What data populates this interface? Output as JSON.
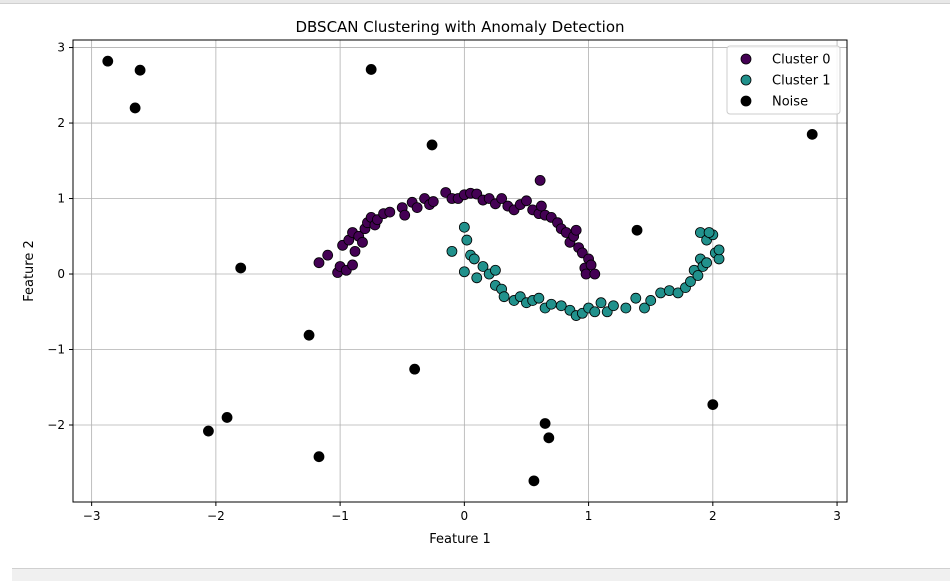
{
  "chart_data": {
    "type": "scatter",
    "title": "DBSCAN Clustering with Anomaly Detection",
    "xlabel": "Feature 1",
    "ylabel": "Feature 2",
    "xlim": [
      -3.15,
      3.08
    ],
    "ylim": [
      -3.02,
      3.1
    ],
    "xticks": [
      -3,
      -2,
      -1,
      0,
      1,
      2,
      3
    ],
    "yticks": [
      -2,
      -1,
      0,
      1,
      2,
      3
    ],
    "grid": true,
    "legend_placement": "top-right",
    "series": [
      {
        "name": "Cluster 0",
        "color": "#440154",
        "points": [
          [
            -1.17,
            0.15
          ],
          [
            -1.1,
            0.25
          ],
          [
            -1.02,
            0.02
          ],
          [
            -1.0,
            0.1
          ],
          [
            -0.98,
            0.38
          ],
          [
            -0.95,
            0.05
          ],
          [
            -0.93,
            0.45
          ],
          [
            -0.9,
            0.12
          ],
          [
            -0.9,
            0.55
          ],
          [
            -0.88,
            0.3
          ],
          [
            -0.85,
            0.5
          ],
          [
            -0.82,
            0.42
          ],
          [
            -0.8,
            0.6
          ],
          [
            -0.78,
            0.68
          ],
          [
            -0.75,
            0.75
          ],
          [
            -0.72,
            0.65
          ],
          [
            -0.7,
            0.72
          ],
          [
            -0.65,
            0.8
          ],
          [
            -0.6,
            0.82
          ],
          [
            -0.5,
            0.88
          ],
          [
            -0.48,
            0.78
          ],
          [
            -0.42,
            0.95
          ],
          [
            -0.38,
            0.88
          ],
          [
            -0.32,
            1.0
          ],
          [
            -0.28,
            0.92
          ],
          [
            -0.25,
            0.96
          ],
          [
            -0.15,
            1.08
          ],
          [
            -0.1,
            1.0
          ],
          [
            -0.05,
            1.0
          ],
          [
            0.0,
            1.05
          ],
          [
            0.05,
            1.07
          ],
          [
            0.1,
            1.06
          ],
          [
            0.15,
            0.98
          ],
          [
            0.2,
            1.0
          ],
          [
            0.25,
            0.93
          ],
          [
            0.3,
            1.0
          ],
          [
            0.35,
            0.9
          ],
          [
            0.4,
            0.85
          ],
          [
            0.45,
            0.92
          ],
          [
            0.5,
            0.97
          ],
          [
            0.55,
            0.85
          ],
          [
            0.6,
            0.8
          ],
          [
            0.62,
            0.9
          ],
          [
            0.61,
            1.24
          ],
          [
            0.65,
            0.78
          ],
          [
            0.7,
            0.75
          ],
          [
            0.75,
            0.68
          ],
          [
            0.78,
            0.6
          ],
          [
            0.82,
            0.55
          ],
          [
            0.85,
            0.42
          ],
          [
            0.88,
            0.5
          ],
          [
            0.9,
            0.58
          ],
          [
            0.92,
            0.35
          ],
          [
            0.95,
            0.28
          ],
          [
            0.97,
            0.08
          ],
          [
            0.98,
            0.0
          ],
          [
            1.0,
            0.2
          ],
          [
            1.02,
            0.12
          ],
          [
            1.05,
            0.0
          ]
        ]
      },
      {
        "name": "Cluster 1",
        "color": "#21918c",
        "points": [
          [
            0.0,
            0.62
          ],
          [
            0.02,
            0.45
          ],
          [
            0.05,
            0.25
          ],
          [
            -0.1,
            0.3
          ],
          [
            0.0,
            0.03
          ],
          [
            0.08,
            0.2
          ],
          [
            0.1,
            -0.05
          ],
          [
            0.15,
            0.1
          ],
          [
            0.2,
            0.0
          ],
          [
            0.25,
            0.05
          ],
          [
            0.25,
            -0.15
          ],
          [
            0.3,
            -0.2
          ],
          [
            0.32,
            -0.3
          ],
          [
            0.4,
            -0.35
          ],
          [
            0.45,
            -0.3
          ],
          [
            0.5,
            -0.38
          ],
          [
            0.55,
            -0.35
          ],
          [
            0.6,
            -0.32
          ],
          [
            0.65,
            -0.45
          ],
          [
            0.7,
            -0.4
          ],
          [
            0.78,
            -0.42
          ],
          [
            0.85,
            -0.48
          ],
          [
            0.9,
            -0.55
          ],
          [
            0.95,
            -0.52
          ],
          [
            1.0,
            -0.45
          ],
          [
            1.05,
            -0.5
          ],
          [
            1.1,
            -0.38
          ],
          [
            1.15,
            -0.5
          ],
          [
            1.2,
            -0.42
          ],
          [
            1.3,
            -0.45
          ],
          [
            1.38,
            -0.32
          ],
          [
            1.45,
            -0.45
          ],
          [
            1.5,
            -0.35
          ],
          [
            1.58,
            -0.25
          ],
          [
            1.65,
            -0.22
          ],
          [
            1.72,
            -0.25
          ],
          [
            1.78,
            -0.18
          ],
          [
            1.82,
            -0.1
          ],
          [
            1.85,
            0.05
          ],
          [
            1.88,
            -0.02
          ],
          [
            1.9,
            0.2
          ],
          [
            1.92,
            0.1
          ],
          [
            1.95,
            0.15
          ],
          [
            1.9,
            0.55
          ],
          [
            1.95,
            0.45
          ],
          [
            2.0,
            0.52
          ],
          [
            2.02,
            0.28
          ],
          [
            2.05,
            0.2
          ],
          [
            2.05,
            0.32
          ],
          [
            1.97,
            0.55
          ]
        ]
      },
      {
        "name": "Noise",
        "color": "#000000",
        "points": [
          [
            -2.87,
            2.82
          ],
          [
            -2.61,
            2.7
          ],
          [
            -2.65,
            2.2
          ],
          [
            -0.75,
            2.71
          ],
          [
            -0.26,
            1.71
          ],
          [
            2.8,
            1.85
          ],
          [
            -1.8,
            0.08
          ],
          [
            1.39,
            0.58
          ],
          [
            -1.25,
            -0.81
          ],
          [
            -0.4,
            -1.26
          ],
          [
            -2.06,
            -2.08
          ],
          [
            -1.91,
            -1.9
          ],
          [
            -1.17,
            -2.42
          ],
          [
            0.65,
            -1.98
          ],
          [
            0.68,
            -2.17
          ],
          [
            0.56,
            -2.74
          ],
          [
            2.0,
            -1.73
          ]
        ]
      }
    ]
  }
}
